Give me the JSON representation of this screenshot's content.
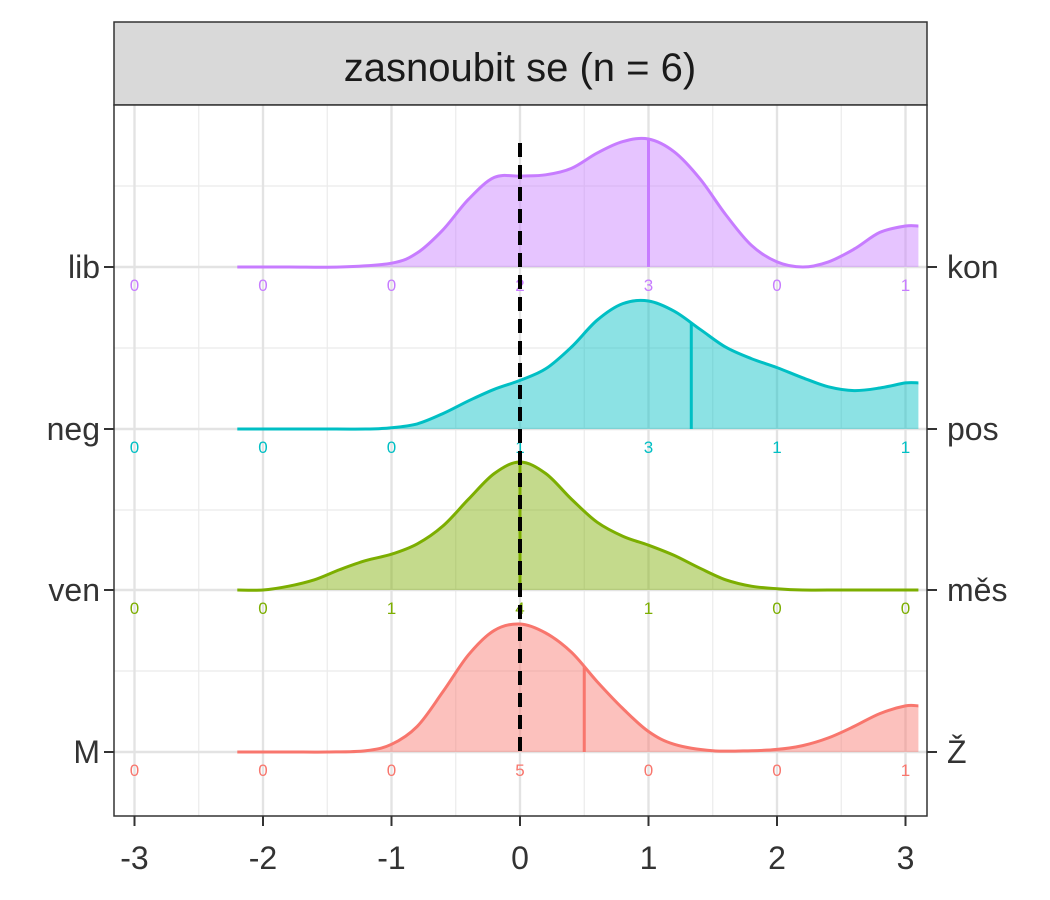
{
  "chart_data": {
    "type": "ridgeline-density",
    "title": "zasnoubit se (n = 6)",
    "x_ticks": [
      "-3",
      "-2",
      "-1",
      "0",
      "1",
      "2",
      "3"
    ],
    "xlim": [
      -3.1,
      3.1
    ],
    "reference_line_x": 0,
    "grid": true,
    "count_positions": [
      -3,
      -2,
      -1,
      0,
      1,
      2,
      3
    ],
    "series": [
      {
        "left_label": "M",
        "right_label": "Ž",
        "color": "#f8766d",
        "counts": [
          "0",
          "0",
          "0",
          "5",
          "0",
          "0",
          "1"
        ],
        "mean": 0.5,
        "density_x": [
          -2.2,
          -1.8,
          -1.5,
          -1.2,
          -1.0,
          -0.8,
          -0.6,
          -0.4,
          -0.2,
          0.0,
          0.2,
          0.4,
          0.6,
          0.8,
          1.0,
          1.2,
          1.5,
          1.8,
          2.0,
          2.2,
          2.4,
          2.6,
          2.8,
          3.0,
          3.1
        ],
        "density_y": [
          0.0,
          0.0,
          0.0,
          0.01,
          0.06,
          0.2,
          0.47,
          0.76,
          0.95,
          1.0,
          0.93,
          0.78,
          0.55,
          0.34,
          0.16,
          0.06,
          0.01,
          0.01,
          0.02,
          0.05,
          0.11,
          0.2,
          0.3,
          0.36,
          0.36
        ]
      },
      {
        "left_label": "ven",
        "right_label": "měs",
        "color": "#7cae00",
        "counts": [
          "0",
          "0",
          "1",
          "4",
          "1",
          "0",
          "0"
        ],
        "mean": 0.0,
        "density_x": [
          -2.2,
          -2.0,
          -1.8,
          -1.6,
          -1.4,
          -1.2,
          -1.0,
          -0.8,
          -0.6,
          -0.4,
          -0.2,
          0.0,
          0.2,
          0.4,
          0.6,
          0.8,
          1.0,
          1.2,
          1.4,
          1.6,
          1.8,
          2.0,
          2.2,
          2.5,
          2.8,
          3.1
        ],
        "density_y": [
          0.0,
          0.0,
          0.03,
          0.08,
          0.16,
          0.23,
          0.28,
          0.36,
          0.5,
          0.71,
          0.91,
          1.0,
          0.91,
          0.71,
          0.53,
          0.42,
          0.35,
          0.27,
          0.17,
          0.08,
          0.03,
          0.01,
          0.0,
          0.0,
          0.0,
          0.0
        ]
      },
      {
        "left_label": "neg",
        "right_label": "pos",
        "color": "#00bfc4",
        "counts": [
          "0",
          "0",
          "0",
          "1",
          "3",
          "1",
          "1"
        ],
        "mean": 1.333,
        "density_x": [
          -2.2,
          -1.6,
          -1.2,
          -1.0,
          -0.8,
          -0.6,
          -0.4,
          -0.2,
          0.0,
          0.2,
          0.4,
          0.6,
          0.8,
          1.0,
          1.2,
          1.4,
          1.6,
          1.8,
          2.0,
          2.2,
          2.4,
          2.6,
          2.8,
          3.0,
          3.1
        ],
        "density_y": [
          0.0,
          0.0,
          0.0,
          0.01,
          0.04,
          0.12,
          0.22,
          0.31,
          0.38,
          0.47,
          0.64,
          0.85,
          0.98,
          1.0,
          0.92,
          0.78,
          0.64,
          0.55,
          0.48,
          0.4,
          0.33,
          0.3,
          0.32,
          0.36,
          0.36
        ]
      },
      {
        "left_label": "lib",
        "right_label": "kon",
        "color": "#c77cff",
        "counts": [
          "0",
          "0",
          "0",
          "2",
          "3",
          "0",
          "1"
        ],
        "mean": 1.0,
        "density_x": [
          -2.2,
          -1.8,
          -1.4,
          -1.0,
          -0.8,
          -0.6,
          -0.4,
          -0.2,
          0.0,
          0.2,
          0.4,
          0.6,
          0.8,
          1.0,
          1.2,
          1.4,
          1.6,
          1.8,
          2.0,
          2.2,
          2.4,
          2.6,
          2.8,
          3.0,
          3.1
        ],
        "density_y": [
          0.0,
          0.0,
          0.0,
          0.03,
          0.11,
          0.29,
          0.53,
          0.7,
          0.71,
          0.72,
          0.77,
          0.89,
          0.98,
          1.0,
          0.9,
          0.69,
          0.41,
          0.17,
          0.04,
          0.0,
          0.04,
          0.14,
          0.27,
          0.32,
          0.32
        ]
      }
    ]
  }
}
